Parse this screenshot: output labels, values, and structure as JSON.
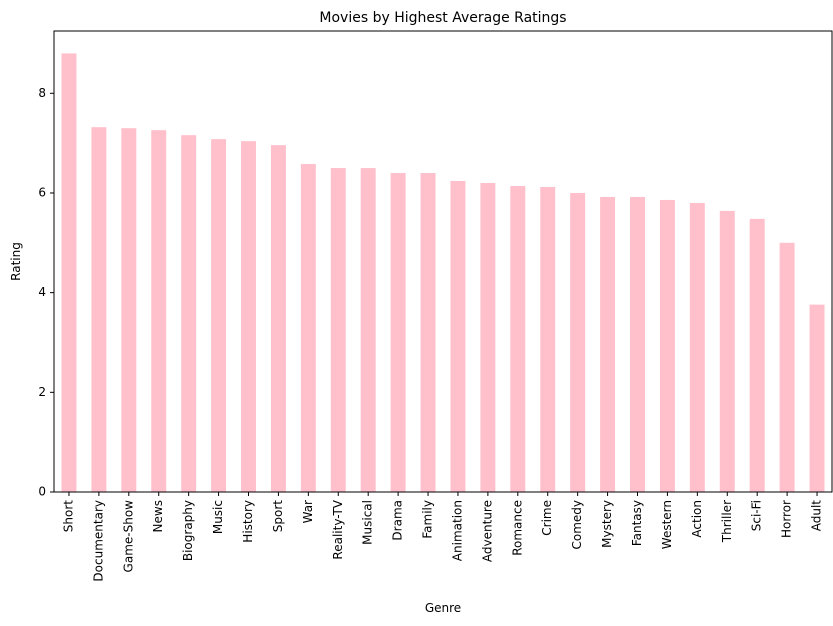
{
  "chart_data": {
    "type": "bar",
    "title": "Movies by Highest Average Ratings",
    "xlabel": "Genre",
    "ylabel": "Rating",
    "ylim": [
      0,
      9.25
    ],
    "yticks": [
      0,
      2,
      4,
      6,
      8
    ],
    "grid": false,
    "bar_color": "#ffc0cb",
    "categories": [
      "Short",
      "Documentary",
      "Game-Show",
      "News",
      "Biography",
      "Music",
      "History",
      "Sport",
      "War",
      "Reality-TV",
      "Musical",
      "Drama",
      "Family",
      "Animation",
      "Adventure",
      "Romance",
      "Crime",
      "Comedy",
      "Mystery",
      "Fantasy",
      "Western",
      "Action",
      "Thriller",
      "Sci-Fi",
      "Horror",
      "Adult"
    ],
    "values": [
      8.8,
      7.32,
      7.3,
      7.26,
      7.16,
      7.08,
      7.04,
      6.96,
      6.58,
      6.5,
      6.5,
      6.4,
      6.4,
      6.24,
      6.2,
      6.14,
      6.12,
      6.0,
      5.92,
      5.92,
      5.86,
      5.8,
      5.64,
      5.48,
      5.0,
      3.76
    ]
  }
}
